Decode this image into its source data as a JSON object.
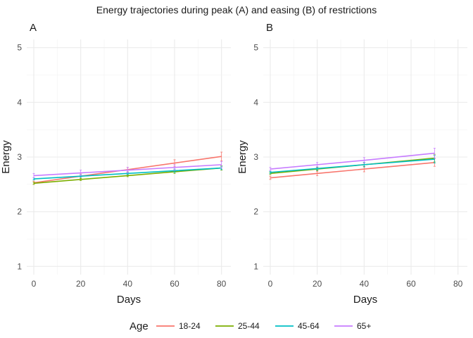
{
  "title": "Energy trajectories during peak (A) and easing (B) of restrictions",
  "legend": {
    "title": "Age",
    "position": "bottom"
  },
  "colors": {
    "18-24": "#F8766D",
    "25-44": "#7CAE00",
    "45-64": "#00BFC4",
    "65+": "#C77CFF"
  },
  "chart_data": [
    {
      "type": "line",
      "panel": "A",
      "xlabel": "Days",
      "ylabel": "Energy",
      "xlim": [
        -3,
        84
      ],
      "ylim": [
        0.85,
        5.15
      ],
      "xticks": [
        0,
        20,
        40,
        60,
        80
      ],
      "yticks": [
        1,
        2,
        3,
        4,
        5
      ],
      "grid": true,
      "x": [
        0,
        20,
        40,
        60,
        80
      ],
      "series": [
        {
          "name": "18-24",
          "values": [
            2.53,
            2.65,
            2.77,
            2.89,
            3.01
          ],
          "err": [
            0.03,
            0.04,
            0.04,
            0.06,
            0.08
          ]
        },
        {
          "name": "25-44",
          "values": [
            2.52,
            2.59,
            2.66,
            2.73,
            2.8
          ],
          "err": [
            0.02,
            0.02,
            0.02,
            0.03,
            0.04
          ]
        },
        {
          "name": "45-64",
          "values": [
            2.6,
            2.65,
            2.7,
            2.75,
            2.8
          ],
          "err": [
            0.02,
            0.02,
            0.02,
            0.03,
            0.03
          ]
        },
        {
          "name": "65+",
          "values": [
            2.66,
            2.71,
            2.76,
            2.81,
            2.86
          ],
          "err": [
            0.04,
            0.05,
            0.05,
            0.05,
            0.06
          ]
        }
      ]
    },
    {
      "type": "line",
      "panel": "B",
      "xlabel": "Days",
      "ylabel": "Energy",
      "xlim": [
        -3,
        84
      ],
      "ylim": [
        0.85,
        5.15
      ],
      "xticks": [
        0,
        20,
        40,
        60,
        80
      ],
      "yticks": [
        1,
        2,
        3,
        4,
        5
      ],
      "grid": true,
      "x": [
        0,
        20,
        40,
        70
      ],
      "series": [
        {
          "name": "18-24",
          "values": [
            2.62,
            2.7,
            2.78,
            2.9
          ],
          "err": [
            0.03,
            0.04,
            0.05,
            0.07
          ]
        },
        {
          "name": "25-44",
          "values": [
            2.7,
            2.78,
            2.86,
            2.98
          ],
          "err": [
            0.02,
            0.03,
            0.04,
            0.07
          ]
        },
        {
          "name": "45-64",
          "values": [
            2.72,
            2.79,
            2.86,
            2.96
          ],
          "err": [
            0.02,
            0.03,
            0.04,
            0.07
          ]
        },
        {
          "name": "65+",
          "values": [
            2.78,
            2.86,
            2.94,
            3.07
          ],
          "err": [
            0.03,
            0.04,
            0.05,
            0.09
          ]
        }
      ]
    }
  ]
}
